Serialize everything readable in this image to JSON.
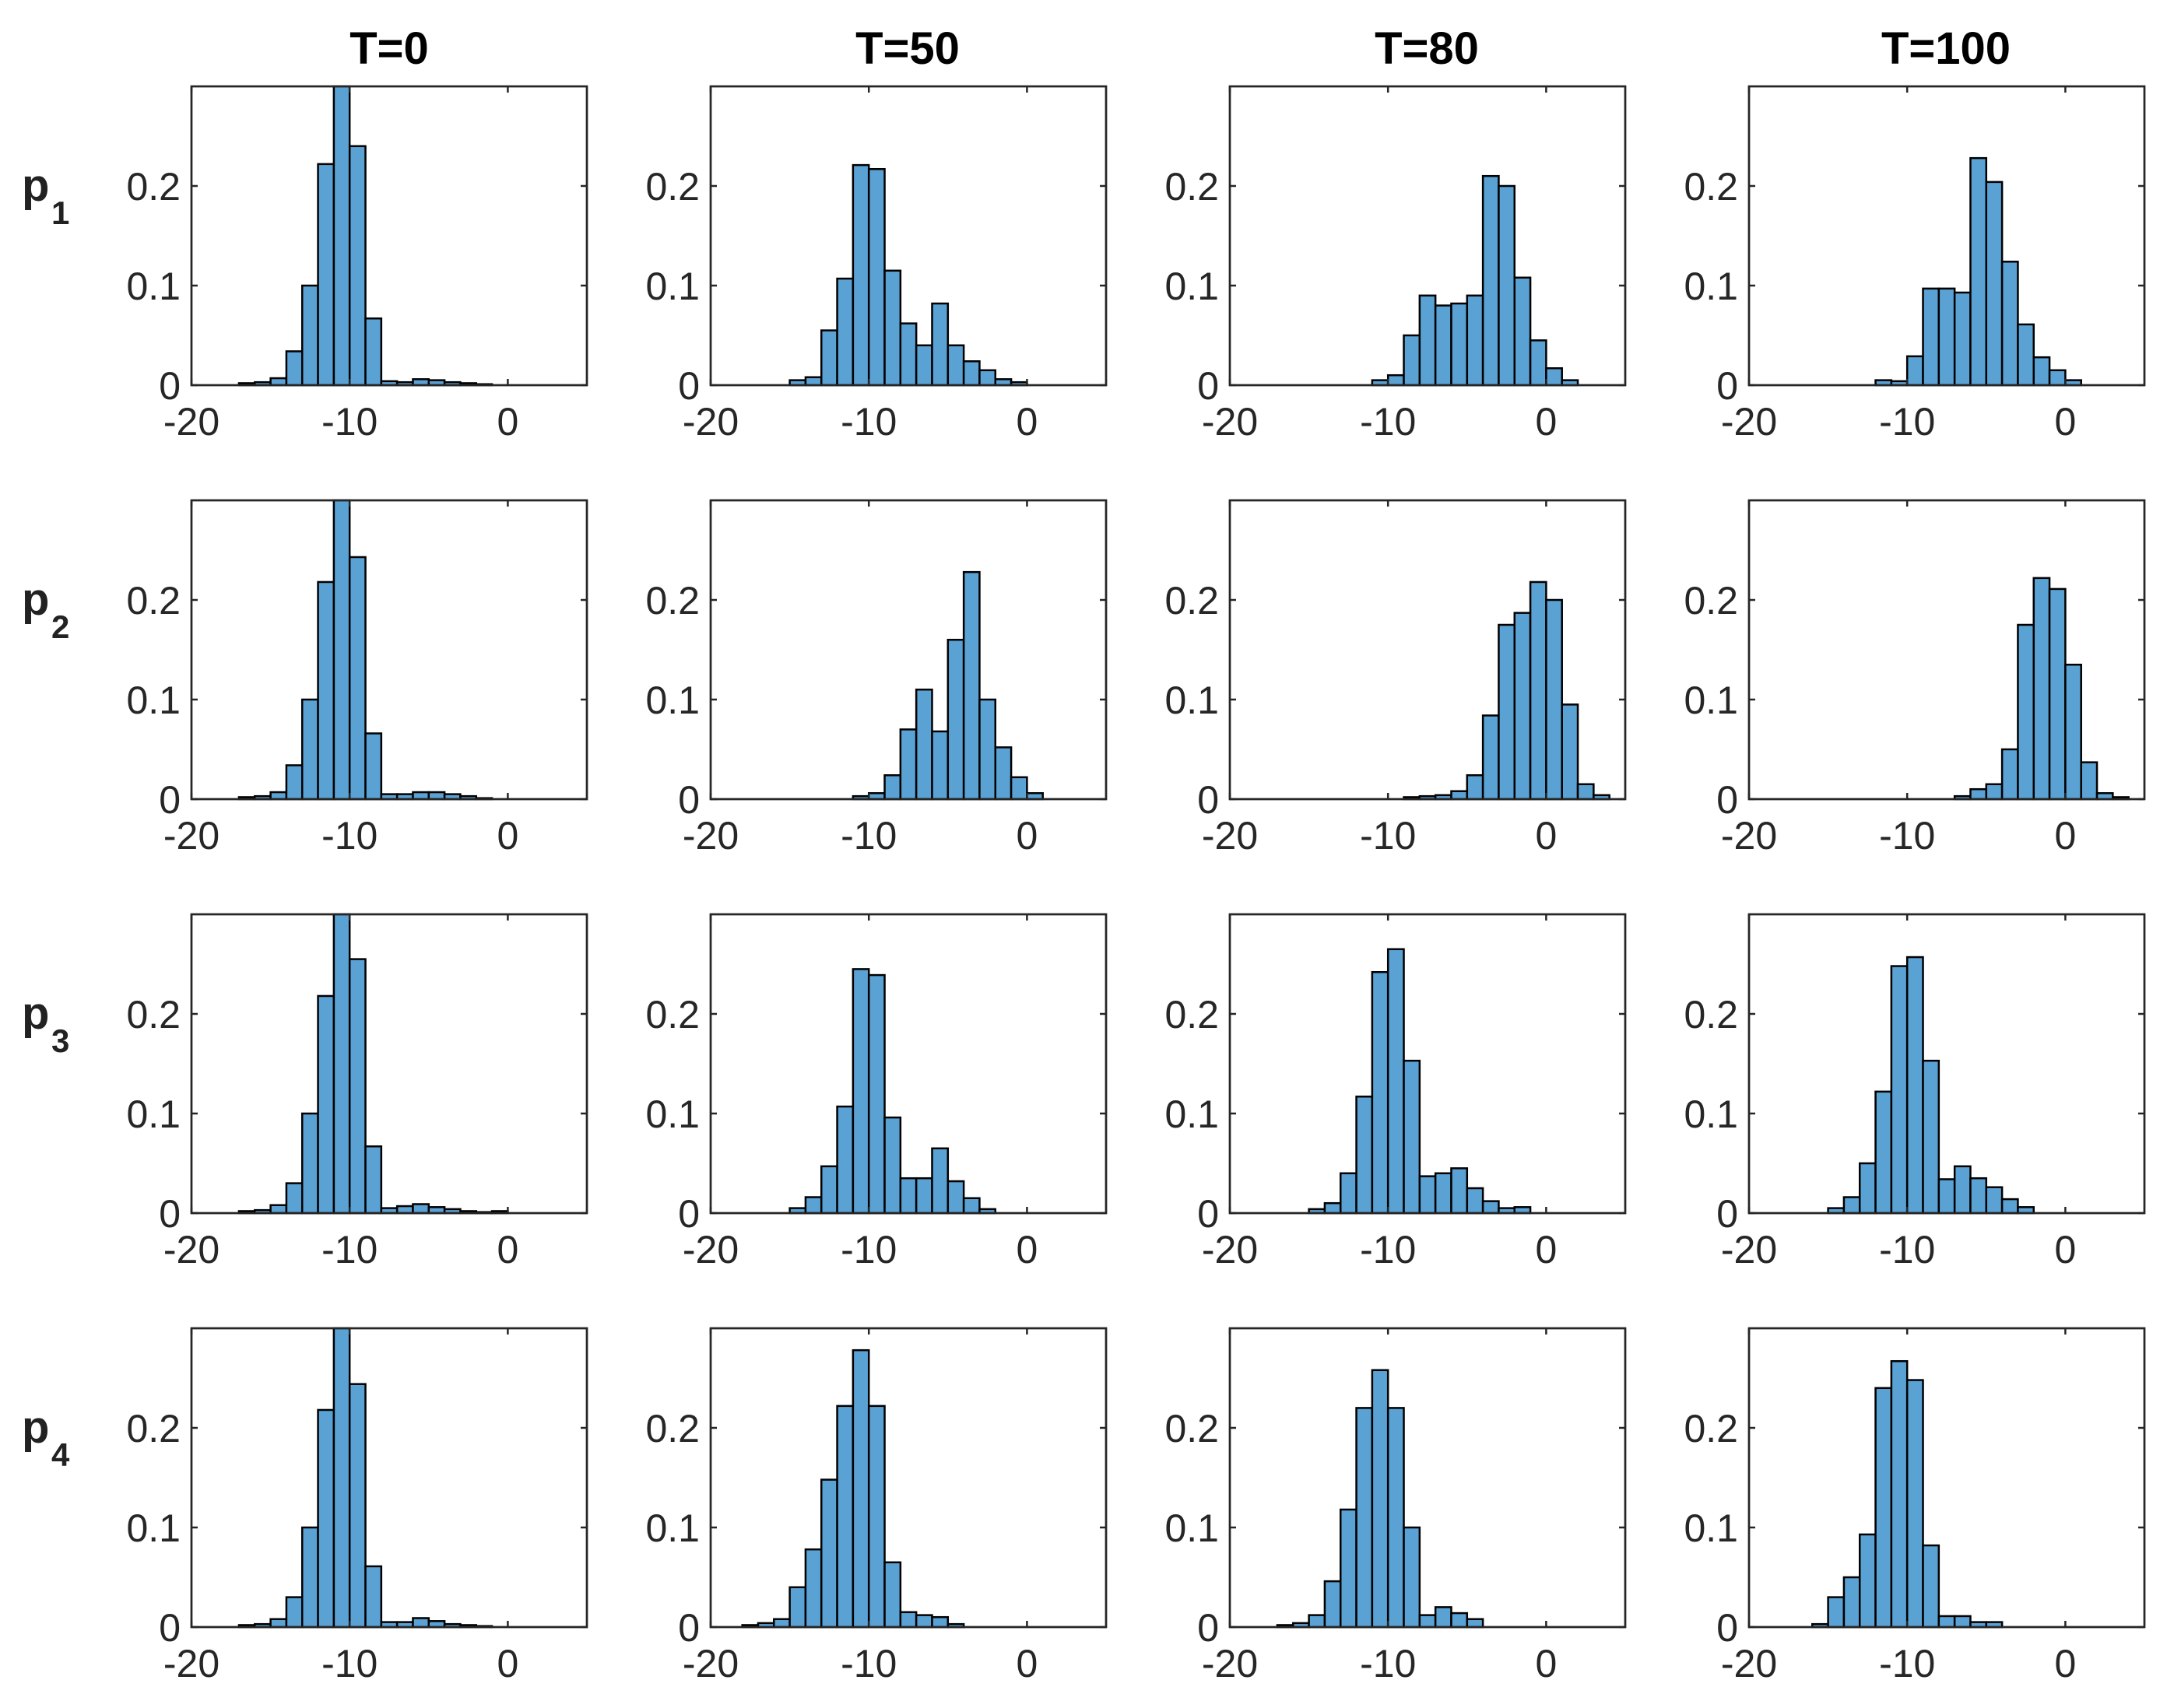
{
  "figure": {
    "column_titles": [
      "T=0",
      "T=50",
      "T=80",
      "T=100"
    ],
    "row_labels": [
      {
        "main": "p",
        "sub": "1"
      },
      {
        "main": "p",
        "sub": "2"
      },
      {
        "main": "p",
        "sub": "3"
      },
      {
        "main": "p",
        "sub": "4"
      }
    ]
  },
  "colors": {
    "bar_fill": "#5aa1d4",
    "bar_edge": "#000000",
    "axes": "#262626"
  },
  "chart_data": {
    "type": "bar",
    "subtype": "histogram-grid",
    "bin_width": 1,
    "xlim": [
      -20,
      5
    ],
    "ylim": [
      0,
      0.3
    ],
    "xticks": [
      -20,
      -10,
      0
    ],
    "yticks": [
      0,
      0.1,
      0.2
    ],
    "ytick_labels": [
      "0",
      "0.1",
      "0.2"
    ],
    "panels": [
      {
        "row": 0,
        "col": 0,
        "bins": [
          [
            -17,
            0.002
          ],
          [
            -16,
            0.003
          ],
          [
            -15,
            0.007
          ],
          [
            -14,
            0.034
          ],
          [
            -13,
            0.1
          ],
          [
            -12,
            0.222
          ],
          [
            -11,
            0.3
          ],
          [
            -10,
            0.24
          ],
          [
            -9,
            0.067
          ],
          [
            -8,
            0.004
          ],
          [
            -7,
            0.003
          ],
          [
            -6,
            0.006
          ],
          [
            -5,
            0.005
          ],
          [
            -4,
            0.003
          ],
          [
            -3,
            0.002
          ],
          [
            -2,
            0.001
          ]
        ]
      },
      {
        "row": 0,
        "col": 1,
        "bins": [
          [
            -15,
            0.005
          ],
          [
            -14,
            0.008
          ],
          [
            -13,
            0.055
          ],
          [
            -12,
            0.107
          ],
          [
            -11,
            0.221
          ],
          [
            -10,
            0.217
          ],
          [
            -9,
            0.115
          ],
          [
            -8,
            0.062
          ],
          [
            -7,
            0.04
          ],
          [
            -6,
            0.082
          ],
          [
            -5,
            0.04
          ],
          [
            -4,
            0.024
          ],
          [
            -3,
            0.015
          ],
          [
            -2,
            0.006
          ],
          [
            -1,
            0.003
          ]
        ]
      },
      {
        "row": 0,
        "col": 2,
        "bins": [
          [
            -11,
            0.005
          ],
          [
            -10,
            0.01
          ],
          [
            -9,
            0.05
          ],
          [
            -8,
            0.09
          ],
          [
            -7,
            0.08
          ],
          [
            -6,
            0.082
          ],
          [
            -5,
            0.09
          ],
          [
            -4,
            0.21
          ],
          [
            -3,
            0.2
          ],
          [
            -2,
            0.108
          ],
          [
            -1,
            0.045
          ],
          [
            0,
            0.017
          ],
          [
            1,
            0.005
          ]
        ]
      },
      {
        "row": 0,
        "col": 3,
        "bins": [
          [
            -12,
            0.005
          ],
          [
            -11,
            0.004
          ],
          [
            -10,
            0.029
          ],
          [
            -9,
            0.097
          ],
          [
            -8,
            0.097
          ],
          [
            -7,
            0.093
          ],
          [
            -6,
            0.228
          ],
          [
            -5,
            0.204
          ],
          [
            -4,
            0.124
          ],
          [
            -3,
            0.061
          ],
          [
            -2,
            0.028
          ],
          [
            -1,
            0.015
          ],
          [
            0,
            0.005
          ]
        ]
      },
      {
        "row": 1,
        "col": 0,
        "bins": [
          [
            -17,
            0.002
          ],
          [
            -16,
            0.003
          ],
          [
            -15,
            0.007
          ],
          [
            -14,
            0.034
          ],
          [
            -13,
            0.1
          ],
          [
            -12,
            0.218
          ],
          [
            -11,
            0.3
          ],
          [
            -10,
            0.243
          ],
          [
            -9,
            0.066
          ],
          [
            -8,
            0.005
          ],
          [
            -7,
            0.005
          ],
          [
            -6,
            0.007
          ],
          [
            -5,
            0.007
          ],
          [
            -4,
            0.005
          ],
          [
            -3,
            0.003
          ],
          [
            -2,
            0.001
          ]
        ]
      },
      {
        "row": 1,
        "col": 1,
        "bins": [
          [
            -11,
            0.003
          ],
          [
            -10,
            0.006
          ],
          [
            -9,
            0.024
          ],
          [
            -8,
            0.07
          ],
          [
            -7,
            0.11
          ],
          [
            -6,
            0.068
          ],
          [
            -5,
            0.16
          ],
          [
            -4,
            0.228
          ],
          [
            -3,
            0.1
          ],
          [
            -2,
            0.052
          ],
          [
            -1,
            0.022
          ],
          [
            0,
            0.006
          ]
        ]
      },
      {
        "row": 1,
        "col": 2,
        "bins": [
          [
            -9,
            0.002
          ],
          [
            -8,
            0.003
          ],
          [
            -7,
            0.004
          ],
          [
            -6,
            0.008
          ],
          [
            -5,
            0.024
          ],
          [
            -4,
            0.084
          ],
          [
            -3,
            0.175
          ],
          [
            -2,
            0.187
          ],
          [
            -1,
            0.218
          ],
          [
            0,
            0.2
          ],
          [
            1,
            0.095
          ],
          [
            2,
            0.015
          ],
          [
            3,
            0.004
          ]
        ]
      },
      {
        "row": 1,
        "col": 3,
        "bins": [
          [
            -7,
            0.003
          ],
          [
            -6,
            0.01
          ],
          [
            -5,
            0.015
          ],
          [
            -4,
            0.05
          ],
          [
            -3,
            0.175
          ],
          [
            -2,
            0.222
          ],
          [
            -1,
            0.211
          ],
          [
            0,
            0.135
          ],
          [
            1,
            0.037
          ],
          [
            2,
            0.006
          ],
          [
            3,
            0.002
          ]
        ]
      },
      {
        "row": 2,
        "col": 0,
        "bins": [
          [
            -17,
            0.002
          ],
          [
            -16,
            0.003
          ],
          [
            -15,
            0.008
          ],
          [
            -14,
            0.03
          ],
          [
            -13,
            0.1
          ],
          [
            -12,
            0.218
          ],
          [
            -11,
            0.3
          ],
          [
            -10,
            0.255
          ],
          [
            -9,
            0.067
          ],
          [
            -8,
            0.005
          ],
          [
            -7,
            0.007
          ],
          [
            -6,
            0.009
          ],
          [
            -5,
            0.006
          ],
          [
            -4,
            0.004
          ],
          [
            -3,
            0.002
          ],
          [
            -2,
            0.001
          ],
          [
            -1,
            0.002
          ]
        ]
      },
      {
        "row": 2,
        "col": 1,
        "bins": [
          [
            -15,
            0.005
          ],
          [
            -14,
            0.016
          ],
          [
            -13,
            0.047
          ],
          [
            -12,
            0.107
          ],
          [
            -11,
            0.245
          ],
          [
            -10,
            0.239
          ],
          [
            -9,
            0.096
          ],
          [
            -8,
            0.035
          ],
          [
            -7,
            0.035
          ],
          [
            -6,
            0.065
          ],
          [
            -5,
            0.032
          ],
          [
            -4,
            0.015
          ],
          [
            -3,
            0.004
          ]
        ]
      },
      {
        "row": 2,
        "col": 2,
        "bins": [
          [
            -15,
            0.004
          ],
          [
            -14,
            0.01
          ],
          [
            -13,
            0.04
          ],
          [
            -12,
            0.117
          ],
          [
            -11,
            0.242
          ],
          [
            -10,
            0.265
          ],
          [
            -9,
            0.153
          ],
          [
            -8,
            0.037
          ],
          [
            -7,
            0.04
          ],
          [
            -6,
            0.045
          ],
          [
            -5,
            0.025
          ],
          [
            -4,
            0.012
          ],
          [
            -3,
            0.005
          ],
          [
            -2,
            0.006
          ]
        ]
      },
      {
        "row": 2,
        "col": 3,
        "bins": [
          [
            -15,
            0.005
          ],
          [
            -14,
            0.016
          ],
          [
            -13,
            0.05
          ],
          [
            -12,
            0.122
          ],
          [
            -11,
            0.248
          ],
          [
            -10,
            0.257
          ],
          [
            -9,
            0.153
          ],
          [
            -8,
            0.034
          ],
          [
            -7,
            0.047
          ],
          [
            -6,
            0.035
          ],
          [
            -5,
            0.026
          ],
          [
            -4,
            0.014
          ],
          [
            -3,
            0.006
          ]
        ]
      },
      {
        "row": 3,
        "col": 0,
        "bins": [
          [
            -17,
            0.002
          ],
          [
            -16,
            0.003
          ],
          [
            -15,
            0.008
          ],
          [
            -14,
            0.03
          ],
          [
            -13,
            0.1
          ],
          [
            -12,
            0.218
          ],
          [
            -11,
            0.3
          ],
          [
            -10,
            0.244
          ],
          [
            -9,
            0.061
          ],
          [
            -8,
            0.005
          ],
          [
            -7,
            0.005
          ],
          [
            -6,
            0.009
          ],
          [
            -5,
            0.006
          ],
          [
            -4,
            0.003
          ],
          [
            -3,
            0.002
          ],
          [
            -2,
            0.001
          ]
        ]
      },
      {
        "row": 3,
        "col": 1,
        "bins": [
          [
            -18,
            0.002
          ],
          [
            -17,
            0.004
          ],
          [
            -16,
            0.008
          ],
          [
            -15,
            0.04
          ],
          [
            -14,
            0.078
          ],
          [
            -13,
            0.148
          ],
          [
            -12,
            0.222
          ],
          [
            -11,
            0.278
          ],
          [
            -10,
            0.222
          ],
          [
            -9,
            0.065
          ],
          [
            -8,
            0.015
          ],
          [
            -7,
            0.012
          ],
          [
            -6,
            0.01
          ],
          [
            -5,
            0.003
          ]
        ]
      },
      {
        "row": 3,
        "col": 2,
        "bins": [
          [
            -17,
            0.002
          ],
          [
            -16,
            0.004
          ],
          [
            -15,
            0.012
          ],
          [
            -14,
            0.046
          ],
          [
            -13,
            0.118
          ],
          [
            -12,
            0.22
          ],
          [
            -11,
            0.258
          ],
          [
            -10,
            0.22
          ],
          [
            -9,
            0.1
          ],
          [
            -8,
            0.012
          ],
          [
            -7,
            0.02
          ],
          [
            -6,
            0.014
          ],
          [
            -5,
            0.008
          ]
        ]
      },
      {
        "row": 3,
        "col": 3,
        "bins": [
          [
            -16,
            0.003
          ],
          [
            -15,
            0.03
          ],
          [
            -14,
            0.05
          ],
          [
            -13,
            0.093
          ],
          [
            -12,
            0.24
          ],
          [
            -11,
            0.267
          ],
          [
            -10,
            0.248
          ],
          [
            -9,
            0.082
          ],
          [
            -8,
            0.011
          ],
          [
            -7,
            0.011
          ],
          [
            -6,
            0.005
          ],
          [
            -5,
            0.005
          ]
        ]
      }
    ]
  }
}
